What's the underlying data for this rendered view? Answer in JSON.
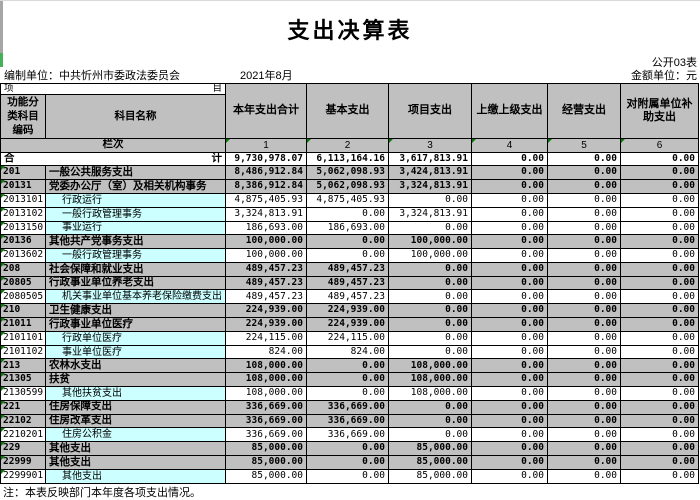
{
  "title": "支出决算表",
  "meta": {
    "table_code": "公开03表",
    "unit_label": "编制单位：中共忻州市委政法委员会",
    "date": "2021年8月",
    "amount_unit": "金额单位：元"
  },
  "header": {
    "item_left": "项",
    "item_right": "目",
    "col_code": "功能分类科目编码",
    "col_name": "科目名称",
    "amount_cols": [
      "本年支出合计",
      "基本支出",
      "项目支出",
      "上缴上级支出",
      "经营支出",
      "对附属单位补助支出"
    ],
    "lanci_label": "栏次",
    "lanci_numbers": [
      "1",
      "2",
      "3",
      "4",
      "5",
      "6"
    ]
  },
  "total_row": {
    "label_left": "合",
    "label_right": "计",
    "values": [
      "9,730,978.07",
      "6,113,164.16",
      "3,617,813.91",
      "0.00",
      "0.00",
      "0.00"
    ]
  },
  "rows": [
    {
      "code": "201",
      "name": "一般公共服务支出",
      "type": "category",
      "values": [
        "8,486,912.84",
        "5,062,098.93",
        "3,424,813.91",
        "0.00",
        "0.00",
        "0.00"
      ]
    },
    {
      "code": "20131",
      "name": "党委办公厅（室）及相关机构事务",
      "type": "category",
      "values": [
        "8,386,912.84",
        "5,062,098.93",
        "3,324,813.91",
        "0.00",
        "0.00",
        "0.00"
      ]
    },
    {
      "code": "2013101",
      "name": "行政运行",
      "type": "detail",
      "values": [
        "4,875,405.93",
        "4,875,405.93",
        "0.00",
        "0.00",
        "0.00",
        "0.00"
      ]
    },
    {
      "code": "2013102",
      "name": "一般行政管理事务",
      "type": "detail",
      "values": [
        "3,324,813.91",
        "0.00",
        "3,324,813.91",
        "0.00",
        "0.00",
        "0.00"
      ]
    },
    {
      "code": "2013150",
      "name": "事业运行",
      "type": "detail",
      "values": [
        "186,693.00",
        "186,693.00",
        "0.00",
        "0.00",
        "0.00",
        "0.00"
      ]
    },
    {
      "code": "20136",
      "name": "其他共产党事务支出",
      "type": "category",
      "values": [
        "100,000.00",
        "0.00",
        "100,000.00",
        "0.00",
        "0.00",
        "0.00"
      ]
    },
    {
      "code": "2013602",
      "name": "一般行政管理事务",
      "type": "detail",
      "values": [
        "100,000.00",
        "0.00",
        "100,000.00",
        "0.00",
        "0.00",
        "0.00"
      ]
    },
    {
      "code": "208",
      "name": "社会保障和就业支出",
      "type": "category",
      "values": [
        "489,457.23",
        "489,457.23",
        "0.00",
        "0.00",
        "0.00",
        "0.00"
      ]
    },
    {
      "code": "20805",
      "name": "行政事业单位养老支出",
      "type": "category",
      "values": [
        "489,457.23",
        "489,457.23",
        "0.00",
        "0.00",
        "0.00",
        "0.00"
      ]
    },
    {
      "code": "2080505",
      "name": "机关事业单位基本养老保险缴费支出",
      "type": "detail",
      "values": [
        "489,457.23",
        "489,457.23",
        "0.00",
        "0.00",
        "0.00",
        "0.00"
      ]
    },
    {
      "code": "210",
      "name": "卫生健康支出",
      "type": "category",
      "values": [
        "224,939.00",
        "224,939.00",
        "0.00",
        "0.00",
        "0.00",
        "0.00"
      ]
    },
    {
      "code": "21011",
      "name": "行政事业单位医疗",
      "type": "category",
      "values": [
        "224,939.00",
        "224,939.00",
        "0.00",
        "0.00",
        "0.00",
        "0.00"
      ]
    },
    {
      "code": "2101101",
      "name": "行政单位医疗",
      "type": "detail",
      "values": [
        "224,115.00",
        "224,115.00",
        "0.00",
        "0.00",
        "0.00",
        "0.00"
      ]
    },
    {
      "code": "2101102",
      "name": "事业单位医疗",
      "type": "detail",
      "values": [
        "824.00",
        "824.00",
        "0.00",
        "0.00",
        "0.00",
        "0.00"
      ]
    },
    {
      "code": "213",
      "name": "农林水支出",
      "type": "category",
      "values": [
        "108,000.00",
        "0.00",
        "108,000.00",
        "0.00",
        "0.00",
        "0.00"
      ]
    },
    {
      "code": "21305",
      "name": "扶贫",
      "type": "category",
      "values": [
        "108,000.00",
        "0.00",
        "108,000.00",
        "0.00",
        "0.00",
        "0.00"
      ]
    },
    {
      "code": "2130599",
      "name": "其他扶贫支出",
      "type": "detail",
      "values": [
        "108,000.00",
        "0.00",
        "108,000.00",
        "0.00",
        "0.00",
        "0.00"
      ]
    },
    {
      "code": "221",
      "name": "住房保障支出",
      "type": "category",
      "values": [
        "336,669.00",
        "336,669.00",
        "0.00",
        "0.00",
        "0.00",
        "0.00"
      ]
    },
    {
      "code": "22102",
      "name": "住房改革支出",
      "type": "category",
      "values": [
        "336,669.00",
        "336,669.00",
        "0.00",
        "0.00",
        "0.00",
        "0.00"
      ]
    },
    {
      "code": "2210201",
      "name": "住房公积金",
      "type": "detail",
      "values": [
        "336,669.00",
        "336,669.00",
        "0.00",
        "0.00",
        "0.00",
        "0.00"
      ]
    },
    {
      "code": "229",
      "name": "其他支出",
      "type": "category",
      "values": [
        "85,000.00",
        "0.00",
        "85,000.00",
        "0.00",
        "0.00",
        "0.00"
      ]
    },
    {
      "code": "22999",
      "name": "其他支出",
      "type": "category",
      "values": [
        "85,000.00",
        "0.00",
        "85,000.00",
        "0.00",
        "0.00",
        "0.00"
      ]
    },
    {
      "code": "2299901",
      "name": "其他支出",
      "type": "detail",
      "values": [
        "85,000.00",
        "0.00",
        "85,000.00",
        "0.00",
        "0.00",
        "0.00"
      ]
    }
  ],
  "note": "注：本表反映部门本年度各项支出情况。",
  "colors": {
    "header_gray": "#c0c0c0",
    "detail_cyan": "#ccffff",
    "triangle_green": "#007a00",
    "edge_gray": "#a6a6a6",
    "edge_green": "#44b05a"
  }
}
